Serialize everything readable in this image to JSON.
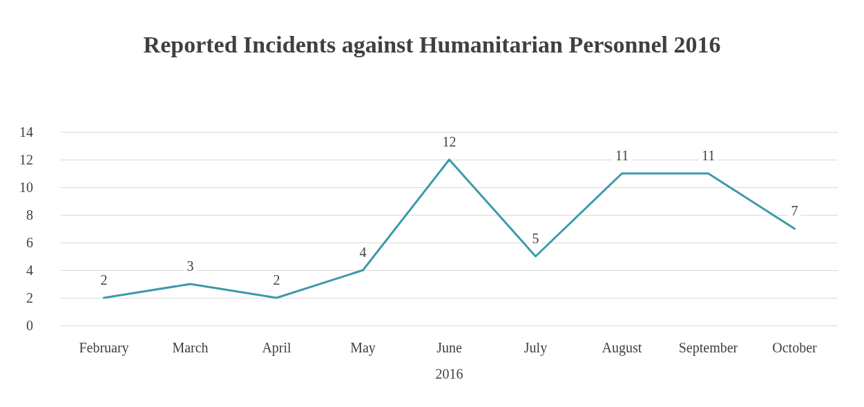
{
  "chart_data": {
    "type": "line",
    "title": "Reported Incidents against Humanitarian Personnel 2016",
    "xlabel": "2016",
    "categories": [
      "February",
      "March",
      "April",
      "May",
      "June",
      "July",
      "August",
      "September",
      "October"
    ],
    "series": [
      {
        "color": "#3d9aa8",
        "values": [
          2,
          3,
          2,
          4,
          12,
          5,
          11,
          11,
          7
        ]
      }
    ],
    "ylim": [
      0,
      14
    ],
    "yticks": [
      0,
      2,
      4,
      6,
      8,
      10,
      12,
      14
    ],
    "grid": "y",
    "data_labels": true,
    "marker": "none",
    "line_style": "solid"
  }
}
